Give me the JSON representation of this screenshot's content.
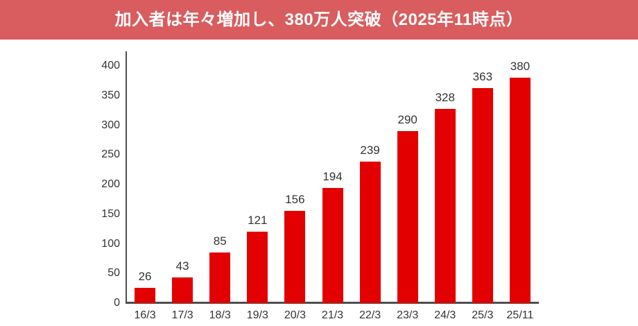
{
  "header": {
    "title": "加入者は年々増加し、380万人突破（2025年11時点）"
  },
  "chart_data": {
    "type": "bar",
    "title": "加入者は年々増加し、380万人突破（2025年11時点）",
    "categories": [
      "16/3",
      "17/3",
      "18/3",
      "19/3",
      "20/3",
      "21/3",
      "22/3",
      "23/3",
      "24/3",
      "25/3",
      "25/11"
    ],
    "values": [
      26,
      43,
      85,
      121,
      156,
      194,
      239,
      290,
      328,
      363,
      380
    ],
    "xlabel": "",
    "ylabel": "",
    "ylim": [
      0,
      400
    ],
    "yticks": [
      0,
      50,
      100,
      150,
      200,
      250,
      300,
      350,
      400
    ],
    "grid": false,
    "legend": "none",
    "data_labels": true,
    "colors": {
      "banner_background": "#D95C5E",
      "banner_text": "#FFFFFF",
      "bar": "#E20000",
      "axis": "#4D4D4D",
      "tick_label": "#333333"
    }
  }
}
